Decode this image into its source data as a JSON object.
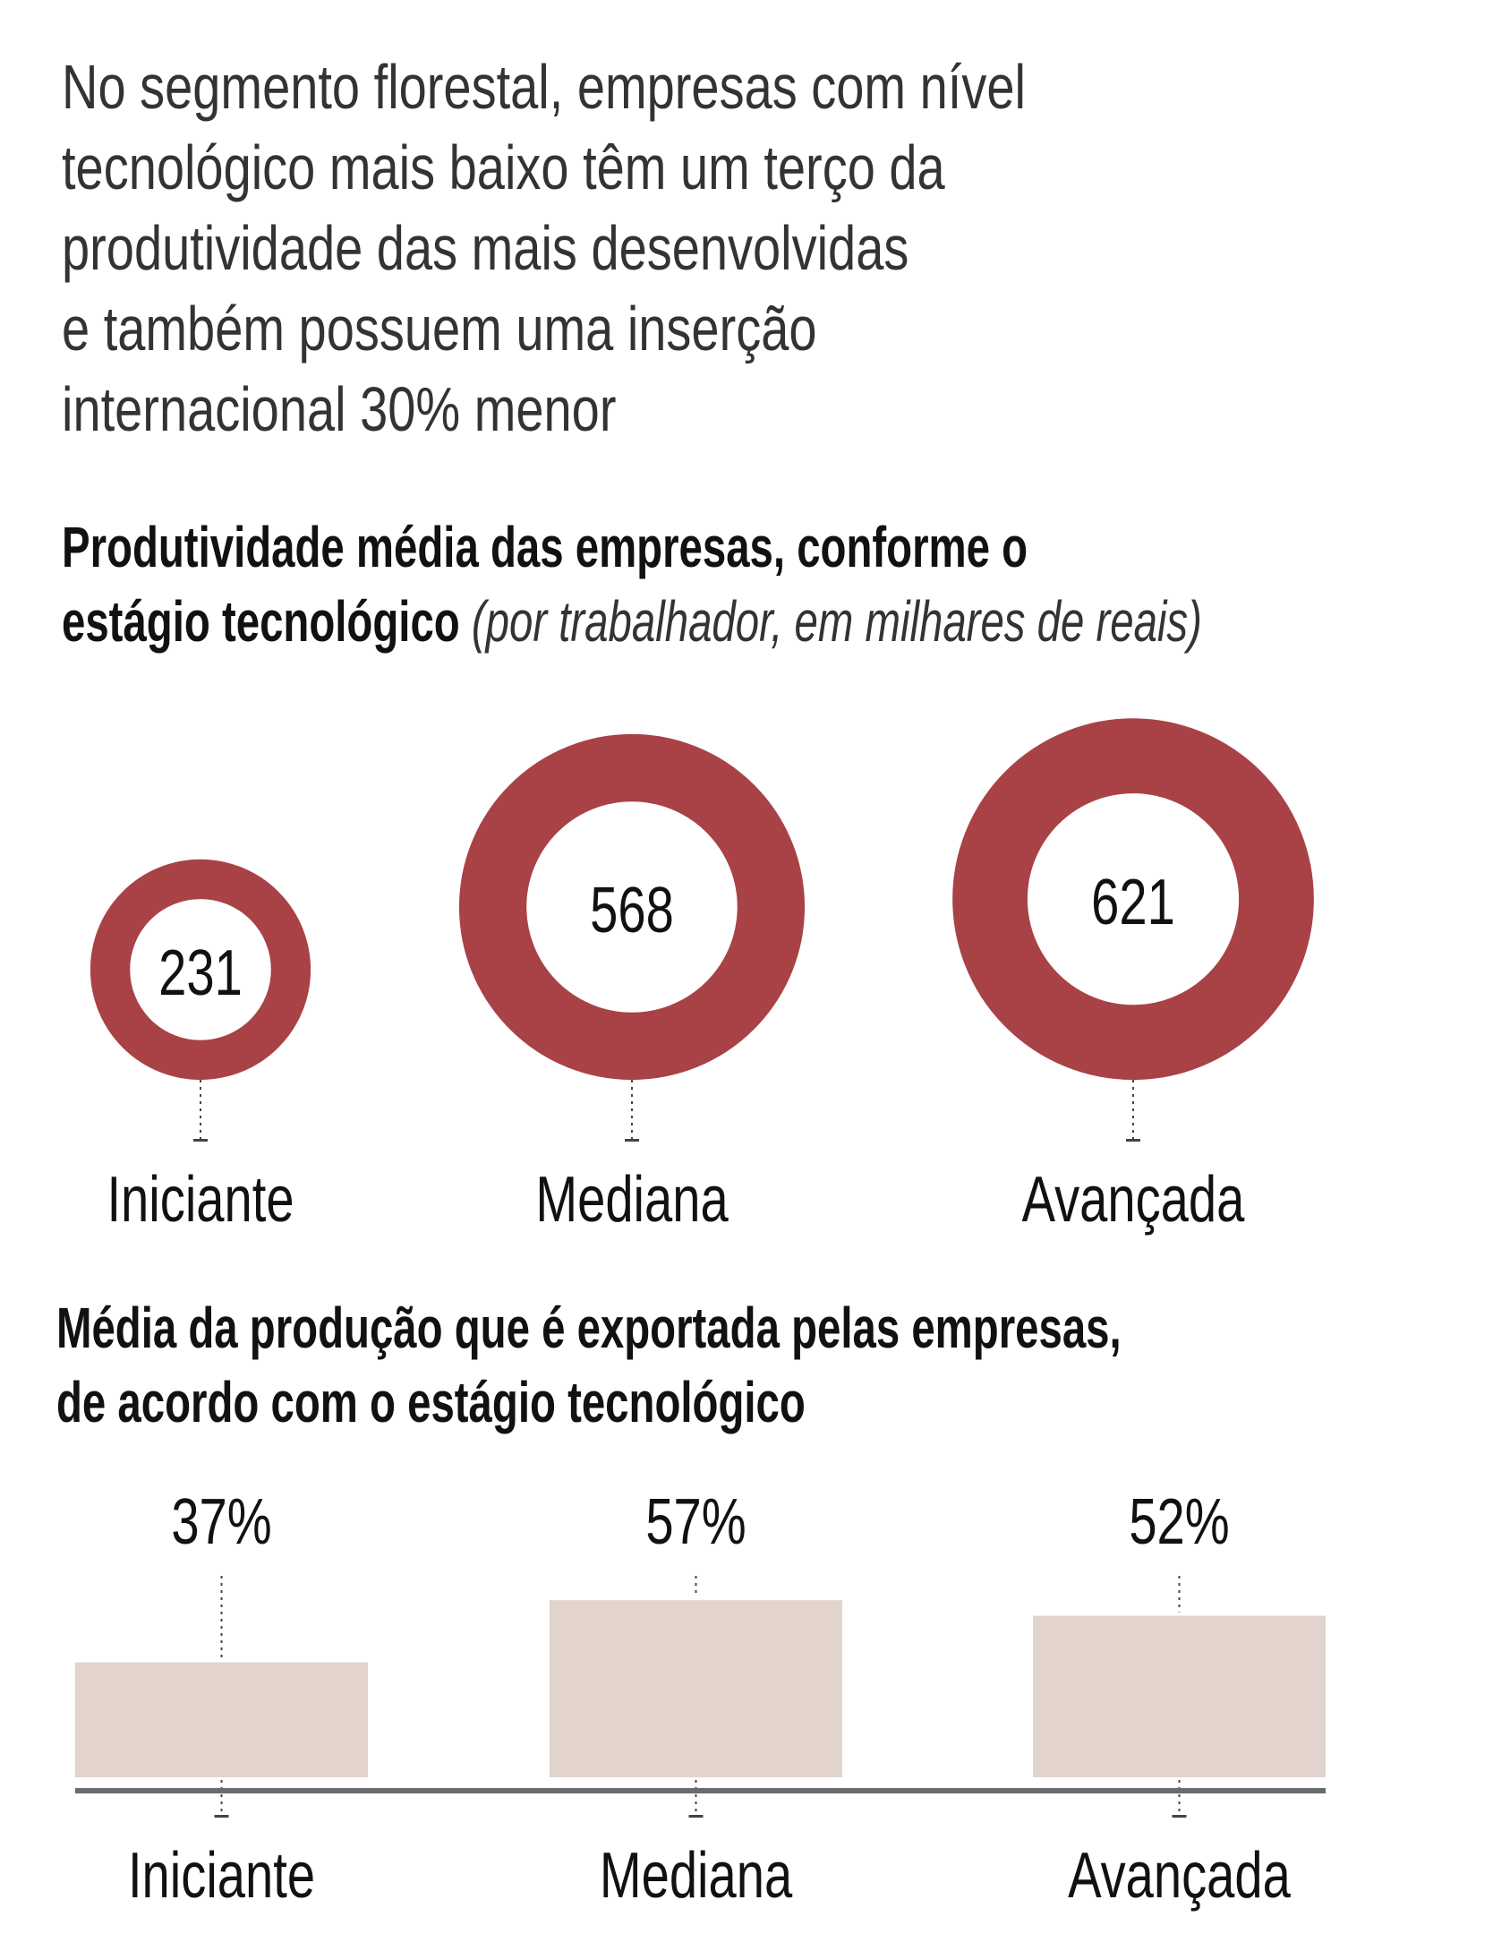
{
  "headline": [
    "No segmento florestal, empresas com nível",
    "tecnológico mais baixo têm um terço da",
    "produtividade das mais desenvolvidas",
    "e também possuem uma inserção",
    "internacional 30% menor"
  ],
  "colors": {
    "ring": "#a84246",
    "bar": "#e2d3cc",
    "axis": "#6b6b6b",
    "leader": "#444444"
  },
  "chart_data": [
    {
      "type": "bubble",
      "title_line1": "Produtividade média das empresas, conforme o",
      "title_line2": "estágio tecnológico",
      "subtitle": "(por trabalhador, em milhares de reais)",
      "categories": [
        "Iniciante",
        "Mediana",
        "Avançada"
      ],
      "values": [
        231,
        568,
        621
      ],
      "value_labels": [
        "231",
        "568",
        "621"
      ]
    },
    {
      "type": "bar",
      "title_line1": "Média da produção que é exportada pelas empresas,",
      "title_line2": "de acordo com o estágio tecnológico",
      "categories": [
        "Iniciante",
        "Mediana",
        "Avançada"
      ],
      "values": [
        37,
        57,
        52
      ],
      "value_labels": [
        "37%",
        "57%",
        "52%"
      ],
      "ylim": [
        0,
        100
      ]
    }
  ]
}
